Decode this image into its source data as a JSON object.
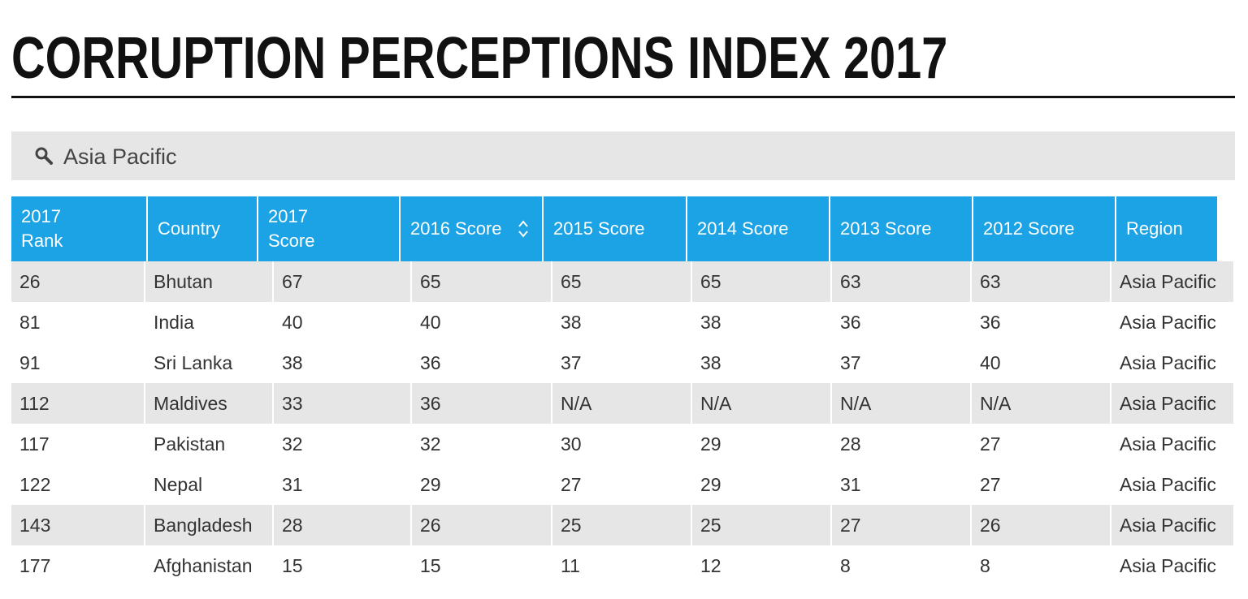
{
  "page": {
    "title": "CORRUPTION PERCEPTIONS INDEX 2017"
  },
  "search": {
    "value": "Asia Pacific",
    "icon": "search-icon"
  },
  "table": {
    "header_color": "#1ba3e5",
    "columns": [
      {
        "label": "2017\nRank",
        "sortable": false
      },
      {
        "label": "Country",
        "sortable": false
      },
      {
        "label": "2017\nScore",
        "sortable": false
      },
      {
        "label": "2016 Score",
        "sortable": true
      },
      {
        "label": "2015 Score",
        "sortable": false
      },
      {
        "label": "2014 Score",
        "sortable": false
      },
      {
        "label": "2013 Score",
        "sortable": false
      },
      {
        "label": "2012 Score",
        "sortable": false
      },
      {
        "label": "Region",
        "sortable": false
      }
    ],
    "rows": [
      [
        "26",
        "Bhutan",
        "67",
        "65",
        "65",
        "65",
        "63",
        "63",
        "Asia Pacific"
      ],
      [
        "81",
        "India",
        "40",
        "40",
        "38",
        "38",
        "36",
        "36",
        "Asia Pacific"
      ],
      [
        "91",
        "Sri Lanka",
        "38",
        "36",
        "37",
        "38",
        "37",
        "40",
        "Asia Pacific"
      ],
      [
        "112",
        "Maldives",
        "33",
        "36",
        "N/A",
        "N/A",
        "N/A",
        "N/A",
        "Asia Pacific"
      ],
      [
        "117",
        "Pakistan",
        "32",
        "32",
        "30",
        "29",
        "28",
        "27",
        "Asia Pacific"
      ],
      [
        "122",
        "Nepal",
        "31",
        "29",
        "27",
        "29",
        "31",
        "27",
        "Asia Pacific"
      ],
      [
        "143",
        "Bangladesh",
        "28",
        "26",
        "25",
        "25",
        "27",
        "26",
        "Asia Pacific"
      ],
      [
        "177",
        "Afghanistan",
        "15",
        "15",
        "11",
        "12",
        "8",
        "8",
        "Asia Pacific"
      ]
    ]
  }
}
